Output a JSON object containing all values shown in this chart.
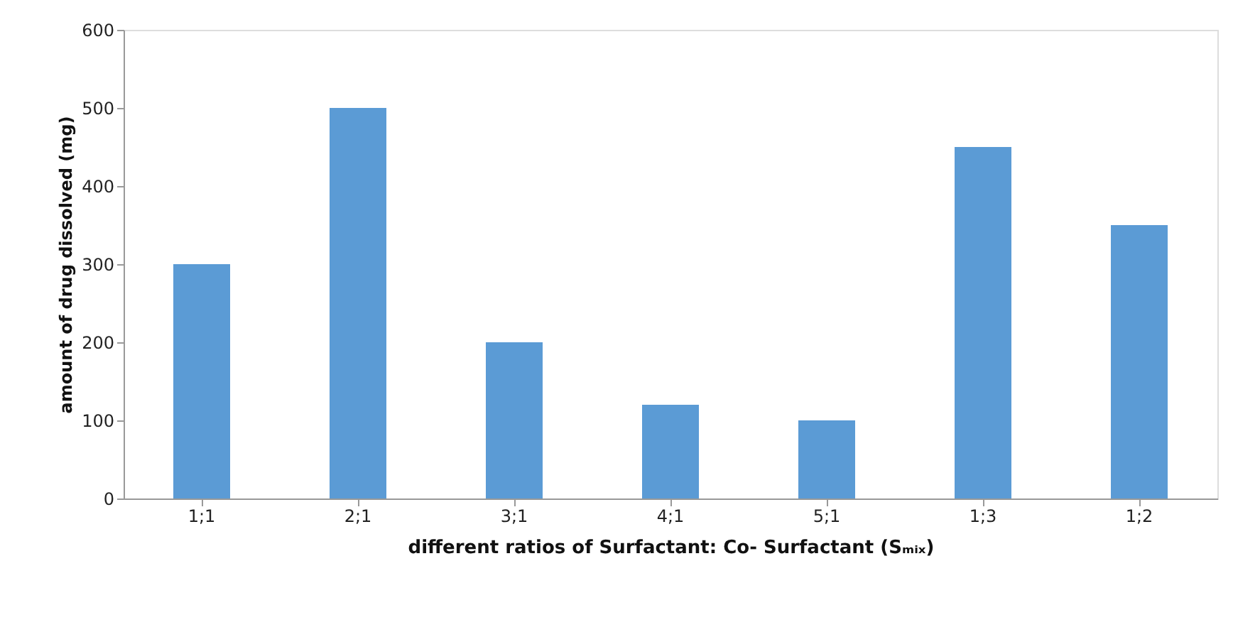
{
  "chart_data": {
    "type": "bar",
    "categories": [
      "1;1",
      "2;1",
      "3;1",
      "4;1",
      "5;1",
      "1;3",
      "1;2"
    ],
    "values": [
      300,
      500,
      200,
      120,
      100,
      450,
      350
    ],
    "color": "#5b9bd5",
    "xlabel": "different ratios of Surfactant: Co- Surfactant  (Sₘᵢₓ)",
    "ylabel": "amount of drug dissolved  (mg)",
    "ylim": [
      0,
      600
    ],
    "yticks": [
      0,
      100,
      200,
      300,
      400,
      500,
      600
    ],
    "grid": false
  }
}
